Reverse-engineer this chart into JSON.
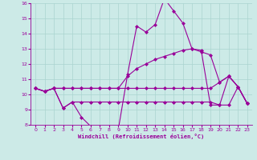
{
  "background_color": "#cceae7",
  "grid_color": "#aad4d0",
  "line_color": "#990099",
  "marker": "D",
  "markersize": 2.0,
  "linewidth": 0.8,
  "xlabel": "Windchill (Refroidissement éolien,°C)",
  "xlim": [
    -0.5,
    23.5
  ],
  "ylim": [
    8,
    16
  ],
  "yticks": [
    8,
    9,
    10,
    11,
    12,
    13,
    14,
    15,
    16
  ],
  "xticks": [
    0,
    1,
    2,
    3,
    4,
    5,
    6,
    7,
    8,
    9,
    10,
    11,
    12,
    13,
    14,
    15,
    16,
    17,
    18,
    19,
    20,
    21,
    22,
    23
  ],
  "series": [
    [
      10.4,
      10.2,
      10.4,
      10.4,
      10.4,
      10.4,
      10.4,
      10.4,
      10.4,
      10.4,
      10.4,
      10.4,
      10.4,
      10.4,
      10.4,
      10.4,
      10.4,
      10.4,
      10.4,
      10.4,
      10.8,
      11.2,
      10.5,
      9.4
    ],
    [
      10.4,
      10.2,
      10.4,
      10.4,
      10.4,
      10.4,
      10.4,
      10.4,
      10.4,
      10.4,
      11.2,
      11.7,
      12.0,
      12.3,
      12.5,
      12.7,
      12.9,
      13.0,
      12.8,
      12.6,
      10.8,
      11.2,
      10.5,
      9.4
    ],
    [
      10.4,
      10.2,
      10.4,
      9.1,
      9.5,
      8.5,
      7.9,
      7.7,
      7.7,
      7.7,
      11.3,
      14.5,
      14.1,
      14.6,
      16.3,
      15.5,
      14.7,
      13.0,
      12.9,
      9.3,
      9.3,
      11.2,
      10.5,
      9.4
    ],
    [
      10.4,
      10.2,
      10.4,
      9.1,
      9.5,
      9.5,
      9.5,
      9.5,
      9.5,
      9.5,
      9.5,
      9.5,
      9.5,
      9.5,
      9.5,
      9.5,
      9.5,
      9.5,
      9.5,
      9.5,
      9.3,
      9.3,
      10.5,
      9.4
    ]
  ]
}
